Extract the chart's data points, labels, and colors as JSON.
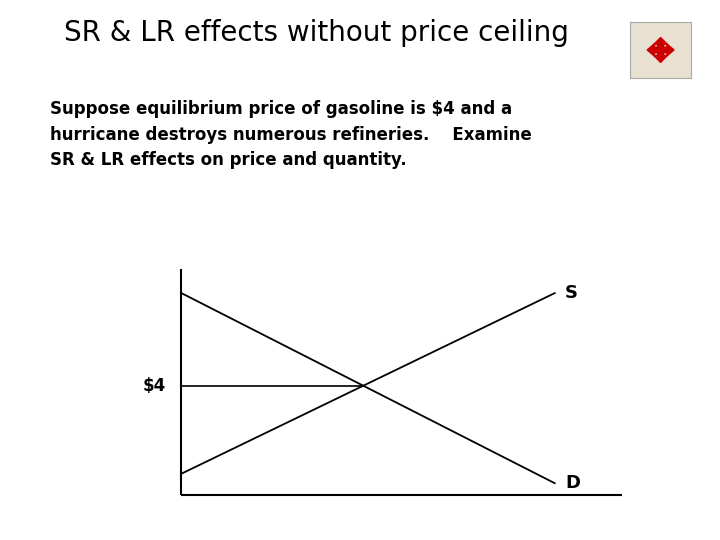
{
  "title": "SR & LR effects without price ceiling",
  "title_fontsize": 20,
  "title_color": "#000000",
  "subtitle_lines": [
    "Suppose equilibrium price of gasoline is $4 and a",
    "hurricane destroys numerous refineries.    Examine",
    "SR & LR effects on price and quantity."
  ],
  "subtitle_fontsize": 12,
  "background_color": "#ffffff",
  "supply_color": "#000000",
  "demand_color": "#000000",
  "price_line_color": "#000000",
  "axis_color": "#000000",
  "s_label": "S",
  "d_label": "D",
  "price_label": "$4",
  "icon_color": "#cc0000",
  "icon_bg": "#e8e0d0"
}
